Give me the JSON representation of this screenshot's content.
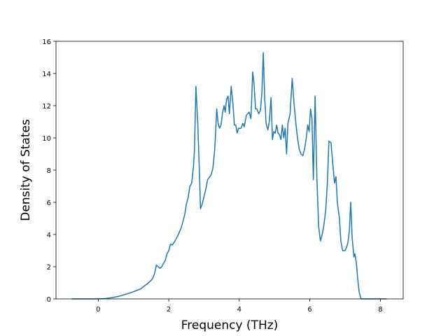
{
  "chart_data": {
    "type": "line",
    "x_label": "Frequency (THz)",
    "y_label": "Density of States",
    "xlim": [
      -1.1975,
      8.6475
    ],
    "ylim": [
      0,
      16
    ],
    "xticks": [
      0,
      2,
      4,
      6,
      8
    ],
    "yticks": [
      0,
      2,
      4,
      6,
      8,
      10,
      12,
      14,
      16
    ],
    "grid": false,
    "series": [
      {
        "name": "DOS",
        "color": "#1f77b4",
        "x": [
          -0.75,
          0,
          0.2,
          0.4,
          0.6,
          0.8,
          1.0,
          1.2,
          1.4,
          1.5,
          1.55,
          1.6,
          1.65,
          1.7,
          1.75,
          1.8,
          1.9,
          1.95,
          2.0,
          2.05,
          2.1,
          2.15,
          2.25,
          2.35,
          2.45,
          2.5,
          2.55,
          2.6,
          2.65,
          2.7,
          2.73,
          2.77,
          2.82,
          2.86,
          2.9,
          2.95,
          3.05,
          3.1,
          3.2,
          3.25,
          3.3,
          3.33,
          3.36,
          3.4,
          3.44,
          3.48,
          3.53,
          3.57,
          3.6,
          3.64,
          3.68,
          3.72,
          3.77,
          3.82,
          3.86,
          3.9,
          3.94,
          3.98,
          4.05,
          4.1,
          4.14,
          4.2,
          4.28,
          4.33,
          4.38,
          4.42,
          4.46,
          4.5,
          4.55,
          4.6,
          4.64,
          4.68,
          4.72,
          4.76,
          4.81,
          4.85,
          4.9,
          4.94,
          4.98,
          5.02,
          5.06,
          5.1,
          5.14,
          5.18,
          5.22,
          5.26,
          5.3,
          5.34,
          5.38,
          5.44,
          5.5,
          5.55,
          5.6,
          5.65,
          5.7,
          5.75,
          5.8,
          5.85,
          5.9,
          5.94,
          5.98,
          6.02,
          6.06,
          6.1,
          6.15,
          6.2,
          6.25,
          6.3,
          6.35,
          6.4,
          6.45,
          6.5,
          6.54,
          6.6,
          6.65,
          6.7,
          6.74,
          6.78,
          6.84,
          6.88,
          6.93,
          7.0,
          7.04,
          7.08,
          7.12,
          7.16,
          7.2,
          7.25,
          7.28,
          7.32,
          7.36,
          7.4,
          7.45,
          8.18
        ],
        "values": [
          0,
          0,
          0.02,
          0.08,
          0.17,
          0.3,
          0.45,
          0.62,
          0.95,
          1.15,
          1.3,
          1.6,
          2.1,
          2.0,
          1.9,
          2.0,
          2.4,
          2.8,
          3.0,
          3.4,
          3.35,
          3.5,
          3.9,
          4.4,
          5.2,
          5.9,
          6.3,
          7.0,
          7.2,
          8.2,
          9.3,
          13.2,
          11.0,
          8.5,
          5.6,
          5.9,
          6.8,
          7.4,
          7.7,
          8.1,
          9.2,
          10.4,
          11.8,
          10.9,
          10.6,
          10.8,
          11.6,
          12.0,
          11.6,
          12.4,
          12.6,
          11.5,
          13.2,
          12.1,
          10.8,
          10.8,
          10.3,
          10.6,
          10.6,
          10.9,
          10.7,
          11.4,
          11.6,
          11.2,
          14.1,
          13.3,
          11.8,
          11.8,
          11.5,
          11.7,
          12.8,
          15.3,
          12.5,
          10.9,
          10.5,
          11.0,
          12.5,
          9.9,
          10.4,
          10.3,
          10.8,
          10.3,
          10.2,
          9.9,
          10.8,
          10.0,
          10.6,
          9.0,
          10.9,
          11.5,
          13.7,
          12.2,
          11.0,
          10.0,
          9.3,
          9.0,
          8.9,
          9.3,
          10.0,
          10.8,
          10.4,
          11.8,
          11.2,
          7.4,
          12.6,
          7.5,
          4.5,
          3.6,
          4.0,
          4.6,
          5.5,
          7.3,
          9.8,
          9.7,
          8.4,
          7.2,
          7.6,
          6.0,
          5.0,
          3.6,
          3.0,
          3.0,
          3.2,
          3.5,
          4.2,
          6.0,
          3.8,
          2.6,
          2.8,
          2.2,
          1.2,
          0.4,
          0,
          0
        ]
      }
    ]
  }
}
